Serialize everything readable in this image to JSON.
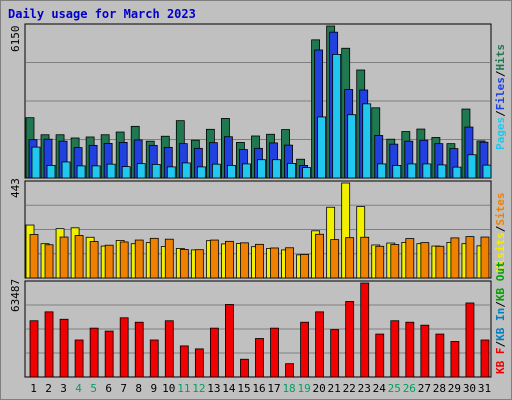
{
  "title": "Daily usage for March 2023",
  "chart_data": [
    {
      "type": "bar",
      "title": "Daily usage for March 2023",
      "panel": "top",
      "ymax_label": "6150",
      "ylim": [
        0,
        6150
      ],
      "categories": [
        "1",
        "2",
        "3",
        "4",
        "5",
        "6",
        "7",
        "8",
        "9",
        "10",
        "11",
        "12",
        "13",
        "14",
        "15",
        "16",
        "17",
        "18",
        "19",
        "20",
        "21",
        "22",
        "23",
        "24",
        "25",
        "26",
        "27",
        "28",
        "29",
        "30",
        "31"
      ],
      "weekend_days": [
        "4",
        "5",
        "11",
        "12",
        "18",
        "19",
        "25",
        "26"
      ],
      "legend": [
        "Pages",
        "Files",
        "Hits"
      ],
      "series": [
        {
          "name": "Hits",
          "color": "#207850",
          "values": [
            2440,
            1750,
            1750,
            1620,
            1660,
            1750,
            1860,
            2090,
            1490,
            1690,
            2320,
            1530,
            1970,
            2410,
            1440,
            1700,
            1770,
            1960,
            760,
            5590,
            6150,
            5250,
            4370,
            2840,
            1570,
            1880,
            1980,
            1640,
            1390,
            2790,
            1500
          ]
        },
        {
          "name": "Files",
          "color": "#2040e0",
          "values": [
            1550,
            1570,
            1490,
            1230,
            1320,
            1400,
            1440,
            1540,
            1320,
            1240,
            1390,
            1200,
            1430,
            1670,
            1150,
            1200,
            1420,
            1330,
            510,
            5180,
            5900,
            3580,
            3560,
            1720,
            1370,
            1490,
            1530,
            1390,
            1190,
            2060,
            1450
          ]
        },
        {
          "name": "Pages",
          "color": "#20c8f0",
          "values": [
            1250,
            510,
            650,
            490,
            490,
            560,
            460,
            580,
            550,
            450,
            610,
            450,
            560,
            510,
            570,
            740,
            740,
            590,
            420,
            2470,
            5000,
            2560,
            3000,
            570,
            510,
            570,
            570,
            530,
            440,
            940,
            520
          ]
        }
      ]
    },
    {
      "type": "bar",
      "panel": "middle",
      "ymax_label": "443",
      "ylim": [
        0,
        443
      ],
      "categories": [
        "1",
        "2",
        "3",
        "4",
        "5",
        "6",
        "7",
        "8",
        "9",
        "10",
        "11",
        "12",
        "13",
        "14",
        "15",
        "16",
        "17",
        "18",
        "19",
        "20",
        "21",
        "22",
        "23",
        "24",
        "25",
        "26",
        "27",
        "28",
        "29",
        "30",
        "31"
      ],
      "legend": [
        "Visits",
        "Sites"
      ],
      "series": [
        {
          "name": "Visits",
          "color": "#f0f000",
          "values": [
            247,
            160,
            230,
            234,
            190,
            149,
            175,
            160,
            165,
            147,
            138,
            131,
            174,
            159,
            161,
            146,
            138,
            131,
            108,
            220,
            330,
            443,
            333,
            154,
            163,
            166,
            160,
            149,
            166,
            160,
            150
          ]
        },
        {
          "name": "Sites",
          "color": "#f08000",
          "values": [
            203,
            155,
            191,
            198,
            170,
            153,
            168,
            177,
            185,
            181,
            133,
            132,
            177,
            171,
            164,
            157,
            140,
            141,
            110,
            204,
            179,
            188,
            190,
            148,
            156,
            184,
            165,
            148,
            187,
            193,
            191
          ]
        }
      ]
    },
    {
      "type": "bar",
      "panel": "bottom",
      "ymax_label": "63487",
      "ylim": [
        0,
        63487
      ],
      "categories": [
        "1",
        "2",
        "3",
        "4",
        "5",
        "6",
        "7",
        "8",
        "9",
        "10",
        "11",
        "12",
        "13",
        "14",
        "15",
        "16",
        "17",
        "18",
        "19",
        "20",
        "21",
        "22",
        "23",
        "24",
        "25",
        "26",
        "27",
        "28",
        "29",
        "30",
        "31"
      ],
      "legend": [
        "KB F",
        "KB In",
        "KB Out"
      ],
      "series": [
        {
          "name": "KB F",
          "color": "#f00000",
          "values": [
            38000,
            44000,
            39000,
            25000,
            33000,
            31000,
            40000,
            37000,
            25000,
            38000,
            21000,
            19000,
            33000,
            49000,
            12000,
            26000,
            33000,
            9000,
            37000,
            44000,
            32000,
            51000,
            63487,
            29000,
            38000,
            37000,
            35000,
            29000,
            24000,
            50000,
            25000
          ]
        }
      ]
    }
  ],
  "legend_colors": {
    "Pages": "#20c8f0",
    "Files": "#2040e0",
    "Hits": "#207850",
    "Visits": "#f0f000",
    "Sites": "#f08000",
    "KB F": "#f00000",
    "KB In": "#0080c0",
    "KB Out": "#00a000",
    "separator": "#000000"
  }
}
